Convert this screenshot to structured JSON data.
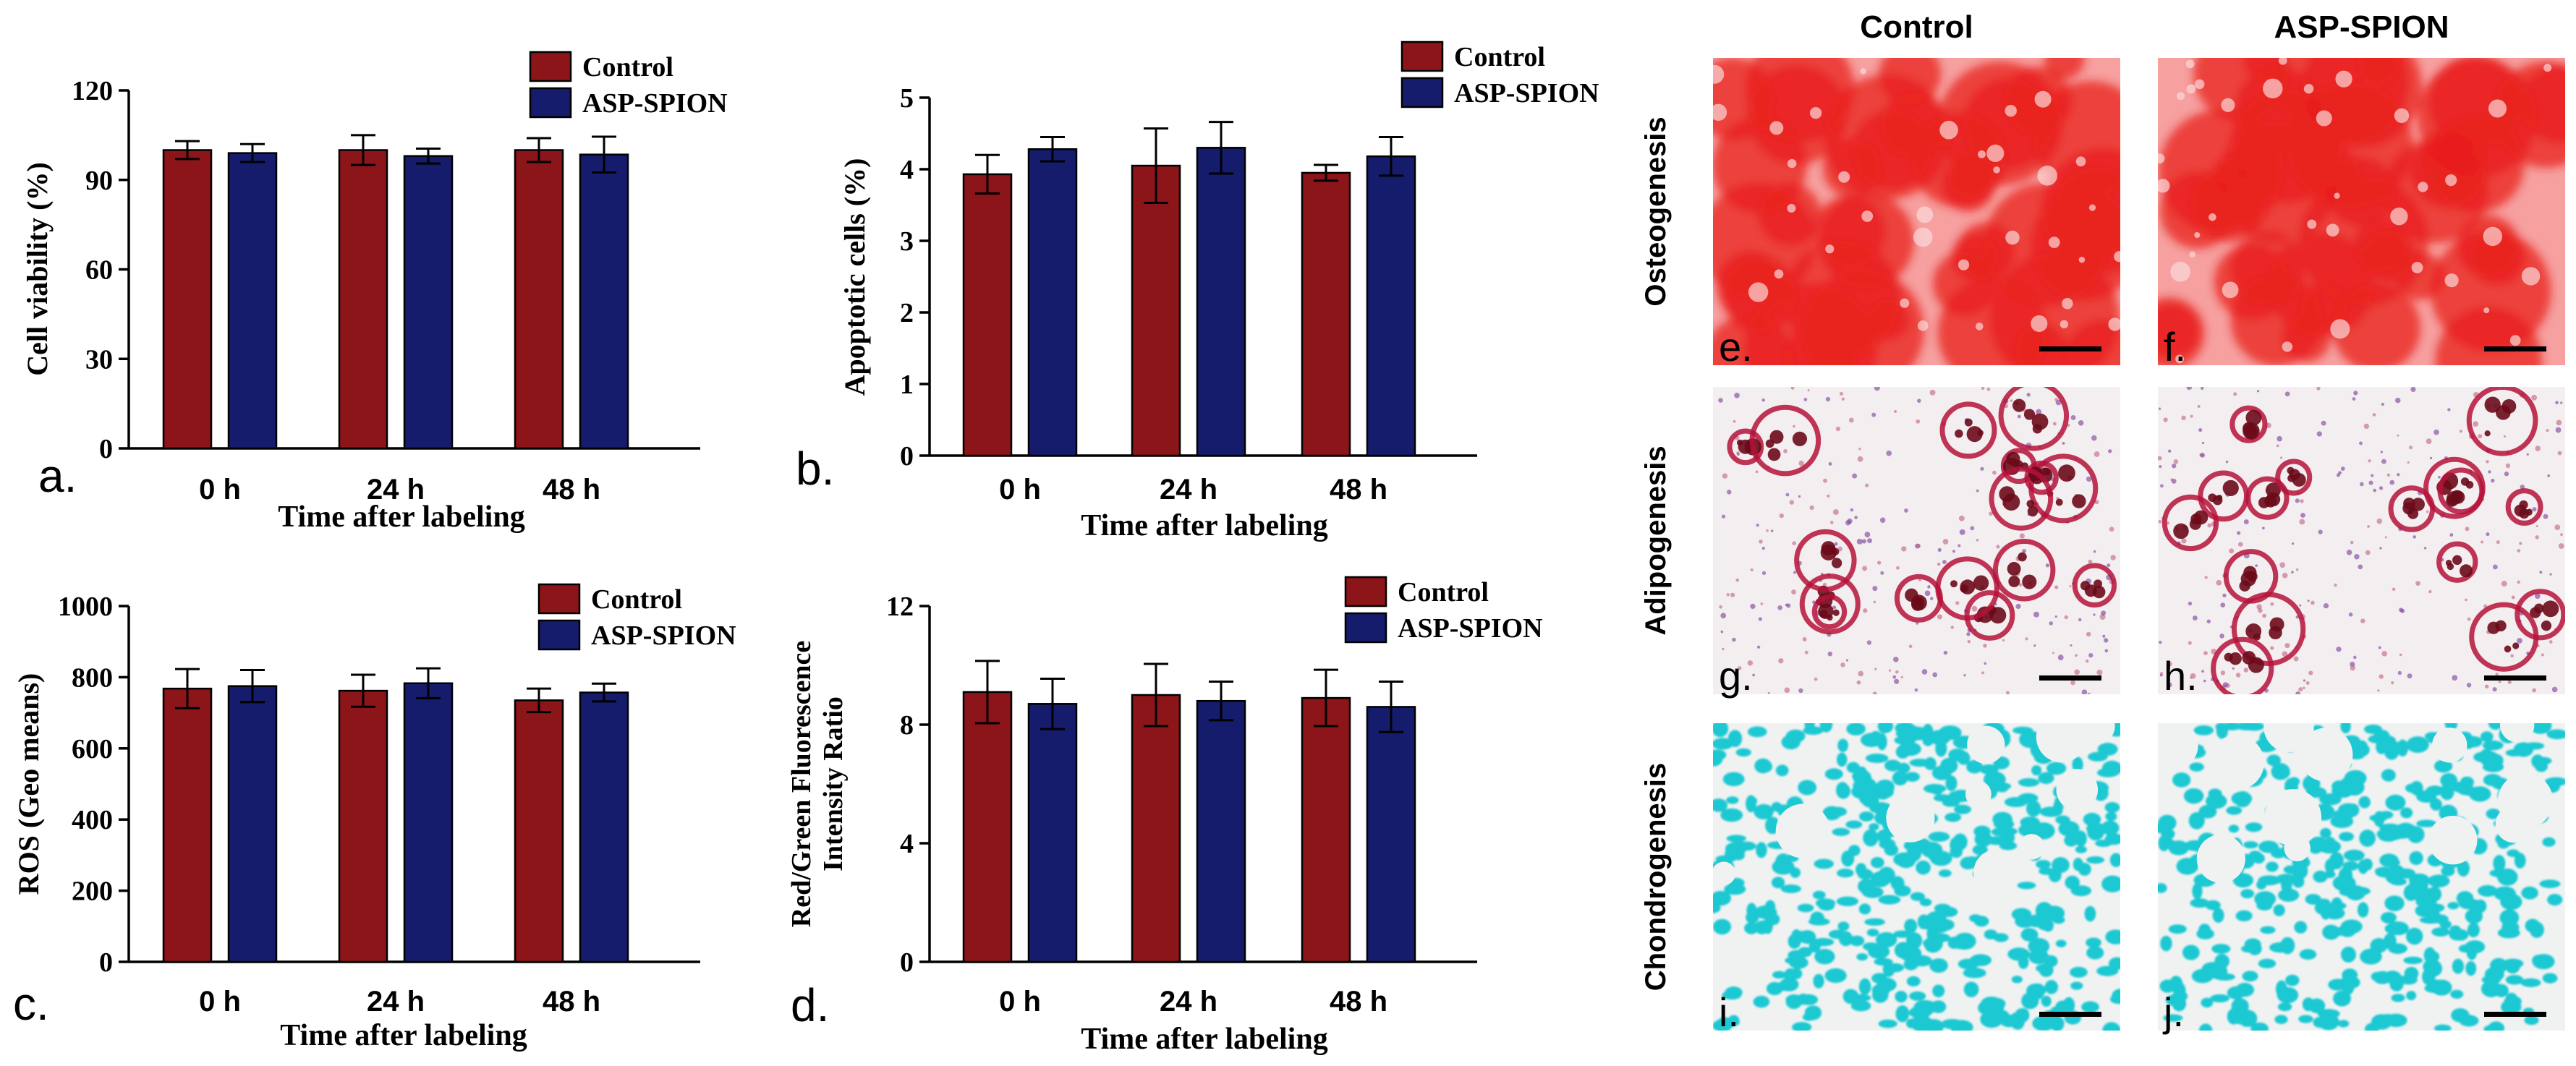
{
  "figure": {
    "colors": {
      "control": "#8B1518",
      "asp": "#151C6B",
      "axis": "#000000",
      "osteo_bg": "#F6A0A0",
      "osteo_fg": "#E8201C",
      "adipo_bg": "#F3EEF0",
      "adipo_fg": "#B5123A",
      "chondro_bg": "#F0F2F2",
      "chondro_fg": "#1EC8D2"
    },
    "micrographs": {
      "col_headers": [
        "Control",
        "ASP-SPION"
      ],
      "row_labels": [
        "Osteogenesis",
        "Adipogenesis",
        "Chondrogenesis"
      ],
      "panel_labels": [
        "e.",
        "f.",
        "g.",
        "h.",
        "i.",
        "j."
      ]
    }
  },
  "chart_data": [
    {
      "panel": "a.",
      "type": "bar",
      "title": "",
      "xlabel": "Time after labeling",
      "ylabel": "Cell viability (%)",
      "categories": [
        "0 h",
        "24 h",
        "48 h"
      ],
      "ylim": [
        0,
        120
      ],
      "yticks": [
        "0",
        "30",
        "60",
        "90",
        "120"
      ],
      "series": [
        {
          "name": "Control",
          "values": [
            100,
            100,
            100
          ],
          "errors": [
            3,
            5,
            4
          ]
        },
        {
          "name": "ASP-SPION",
          "values": [
            99,
            98,
            98.5
          ],
          "errors": [
            3,
            2.5,
            6
          ]
        }
      ],
      "legend": [
        "Control",
        "ASP-SPION"
      ]
    },
    {
      "panel": "b.",
      "type": "bar",
      "title": "",
      "xlabel": "Time after labeling",
      "ylabel": "Apoptotic cells (%)",
      "categories": [
        "0 h",
        "24 h",
        "48 h"
      ],
      "ylim": [
        0,
        5
      ],
      "yticks": [
        "0",
        "1",
        "2",
        "3",
        "4",
        "5"
      ],
      "series": [
        {
          "name": "Control",
          "values": [
            3.93,
            4.05,
            3.95
          ],
          "errors": [
            0.27,
            0.52,
            0.11
          ]
        },
        {
          "name": "ASP-SPION",
          "values": [
            4.28,
            4.3,
            4.18
          ],
          "errors": [
            0.17,
            0.36,
            0.27
          ]
        }
      ],
      "legend": [
        "Control",
        "ASP-SPION"
      ]
    },
    {
      "panel": "c.",
      "type": "bar",
      "title": "",
      "xlabel": "Time after labeling",
      "ylabel": "ROS (Geo means)",
      "categories": [
        "0 h",
        "24 h",
        "48 h"
      ],
      "ylim": [
        0,
        1000
      ],
      "yticks": [
        "0",
        "200",
        "400",
        "600",
        "800",
        "1000"
      ],
      "series": [
        {
          "name": "Control",
          "values": [
            768,
            762,
            735
          ],
          "errors": [
            55,
            45,
            33
          ]
        },
        {
          "name": "ASP-SPION",
          "values": [
            775,
            783,
            757
          ],
          "errors": [
            45,
            42,
            25
          ]
        }
      ],
      "legend": [
        "Control",
        "ASP-SPION"
      ]
    },
    {
      "panel": "d.",
      "type": "bar",
      "title": "",
      "xlabel": "Time after labeling",
      "ylabel": "Red/Green Fluorescence Intensity Ratio",
      "ylabel_lines": [
        "Red/Green Fluorescence",
        "Intensity Ratio"
      ],
      "categories": [
        "0 h",
        "24 h",
        "48 h"
      ],
      "ylim": [
        0,
        12
      ],
      "yticks": [
        "0",
        "4",
        "8",
        "12"
      ],
      "series": [
        {
          "name": "Control",
          "values": [
            9.1,
            9.0,
            8.9
          ],
          "errors": [
            1.05,
            1.05,
            0.95
          ]
        },
        {
          "name": "ASP-SPION",
          "values": [
            8.7,
            8.8,
            8.6
          ],
          "errors": [
            0.85,
            0.65,
            0.85
          ]
        }
      ],
      "legend": [
        "Control",
        "ASP-SPION"
      ]
    }
  ]
}
